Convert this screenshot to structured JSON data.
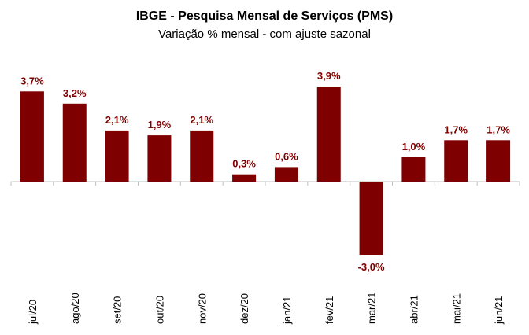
{
  "chart_data": {
    "type": "bar",
    "title": "IBGE - Pesquisa Mensal de Serviços (PMS)",
    "subtitle": "Variação % mensal - com ajuste sazonal",
    "categories": [
      "jul/20",
      "ago/20",
      "set/20",
      "out/20",
      "nov/20",
      "dez/20",
      "jan/21",
      "fev/21",
      "mar/21",
      "abr/21",
      "mai/21",
      "jun/21"
    ],
    "values": [
      3.7,
      3.2,
      2.1,
      1.9,
      2.1,
      0.3,
      0.6,
      3.9,
      -3.0,
      1.0,
      1.7,
      1.7
    ],
    "data_labels": [
      "3,7%",
      "3,2%",
      "2,1%",
      "1,9%",
      "2,1%",
      "0,3%",
      "0,6%",
      "3,9%",
      "-3,0%",
      "1,0%",
      "1,7%",
      "1,7%"
    ],
    "xlabel": "",
    "ylabel": "",
    "ylim": [
      -3.0,
      3.9
    ],
    "grid": false,
    "legend": "none",
    "bar_color": "#7f0000",
    "label_color": "#7f0000"
  }
}
